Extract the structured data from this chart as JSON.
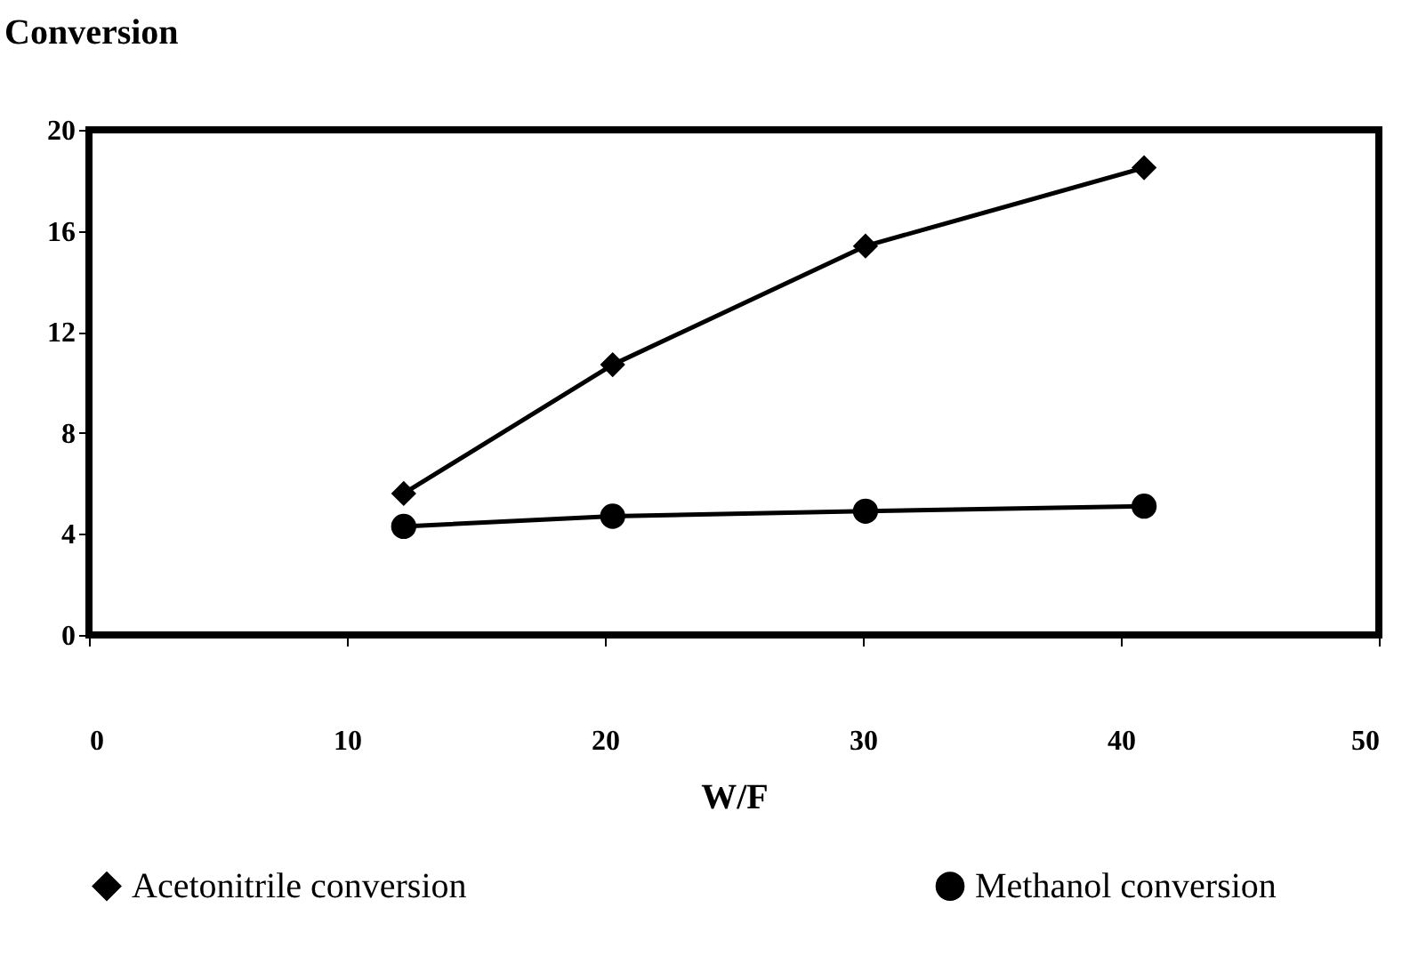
{
  "chart_data": {
    "type": "line",
    "xlabel": "W/F",
    "ylabel": "Conversion",
    "x": [
      12.2,
      20.3,
      30.1,
      40.9
    ],
    "series": [
      {
        "name": "Acetonitrile conversion",
        "color": "#000000",
        "marker": "diamond",
        "values": [
          5.6,
          10.7,
          15.4,
          18.5
        ]
      },
      {
        "name": "Methanol conversion",
        "color": "#000000",
        "marker": "circle",
        "values": [
          4.3,
          4.7,
          4.9,
          5.1
        ]
      }
    ],
    "xlim": [
      0,
      50
    ],
    "xticks": [
      0,
      10,
      20,
      30,
      40,
      50
    ],
    "ylim": [
      0,
      20
    ],
    "yticks": [
      0,
      4,
      8,
      12,
      16,
      20
    ],
    "grid": false,
    "legend": "bottom",
    "line_style": "solid"
  }
}
